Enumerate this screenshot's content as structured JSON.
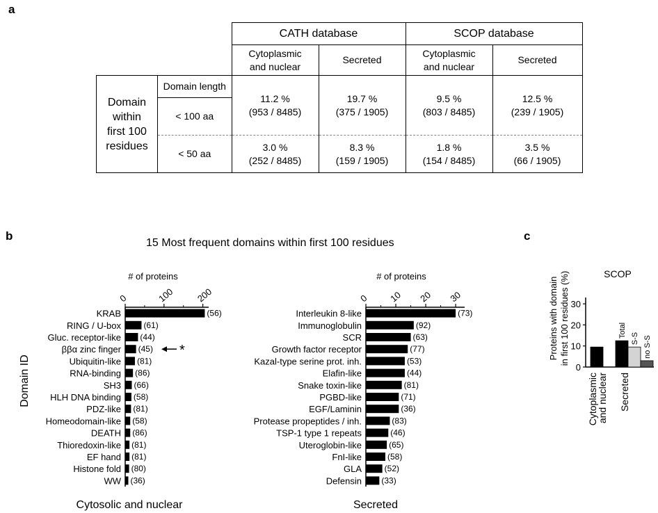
{
  "panel_a": {
    "letter": "a",
    "cath_header": "CATH database",
    "scop_header": "SCOP database",
    "cyto_label_1": "Cytoplasmic",
    "cyto_label_2": "and nuclear",
    "secreted_label": "Secreted",
    "domain_length_label": "Domain length",
    "row_group_label": [
      "Domain",
      "within",
      "first 100",
      "residues"
    ],
    "rows": [
      {
        "length": "< 100 aa",
        "cells": [
          [
            "11.2 %",
            "(953 / 8485)"
          ],
          [
            "19.7 %",
            "(375 / 1905)"
          ],
          [
            "9.5 %",
            "(803 / 8485)"
          ],
          [
            "12.5 %",
            "(239 / 1905)"
          ]
        ]
      },
      {
        "length": "< 50 aa",
        "cells": [
          [
            "3.0 %",
            "(252 / 8485)"
          ],
          [
            "8.3 %",
            "(159 / 1905)"
          ],
          [
            "1.8 %",
            "(154 / 8485)"
          ],
          [
            "3.5 %",
            "(66 / 1905)"
          ]
        ]
      }
    ]
  },
  "panel_b": {
    "letter": "b",
    "title": "15 Most frequent domains within first 100 residues",
    "ylabel": "Domain ID",
    "annotation_star": "*"
  },
  "panel_c": {
    "letter": "c"
  },
  "chart_data": [
    {
      "type": "bar",
      "orientation": "horizontal",
      "title": "",
      "xlabel": "# of proteins",
      "ylabel": "Domain ID",
      "caption": "Cytosolic and nuclear",
      "xlim": [
        0,
        215
      ],
      "xticks": [
        0,
        100,
        200
      ],
      "xticks_minor": [
        50,
        150
      ],
      "categories": [
        "KRAB",
        "RING / U-box",
        "Gluc. receptor-like",
        "ββα zinc finger",
        "Ubiquitin-like",
        "RNA-binding",
        "SH3",
        "HLH DNA binding",
        "PDZ-like",
        "Homeodomain-like",
        "DEATH",
        "Thioredoxin-like",
        "EF hand",
        "Histone fold",
        "WW"
      ],
      "values": [
        205,
        42,
        33,
        28,
        25,
        20,
        17,
        16,
        15,
        13,
        13,
        11,
        11,
        10,
        8
      ],
      "data_labels": [
        "(56)",
        "(61)",
        "(44)",
        "(45)",
        "(81)",
        "(86)",
        "(66)",
        "(58)",
        "(81)",
        "(58)",
        "(86)",
        "(81)",
        "(81)",
        "(80)",
        "(36)"
      ],
      "highlight_category": "ββα zinc finger"
    },
    {
      "type": "bar",
      "orientation": "horizontal",
      "title": "",
      "xlabel": "# of proteins",
      "caption": "Secreted",
      "xlim": [
        0,
        33
      ],
      "xticks": [
        0,
        10,
        20,
        30
      ],
      "xticks_minor": [
        5,
        15,
        25
      ],
      "categories": [
        "Interleukin 8-like",
        "Immunoglobulin",
        "SCR",
        "Growth factor receptor",
        "Kazal-type serine prot. inh.",
        "Elafin-like",
        "Snake toxin-like",
        "PGBD-like",
        "EGF/Laminin",
        "Protease propeptides / inh.",
        "TSP-1 type 1 repeats",
        "Uteroglobin-like",
        "FnI-like",
        "GLA",
        "Defensin"
      ],
      "values": [
        30,
        16,
        15,
        14,
        13,
        13,
        12,
        11,
        11,
        8,
        7.5,
        7,
        6.5,
        5.5,
        4.5
      ],
      "data_labels": [
        "(73)",
        "(92)",
        "(63)",
        "(77)",
        "(53)",
        "(44)",
        "(81)",
        "(71)",
        "(36)",
        "(83)",
        "(46)",
        "(65)",
        "(58)",
        "(52)",
        "(33)"
      ]
    },
    {
      "type": "bar",
      "title": "SCOP",
      "ylabel_lines": [
        "Proteins with domain",
        "in first 100 residues (%)"
      ],
      "ylim": [
        0,
        33
      ],
      "yticks": [
        0,
        10,
        20,
        30
      ],
      "groups": [
        {
          "label_lines": [
            "Cytoplasmic",
            "and nuclear"
          ],
          "bars": [
            {
              "value": 9.5,
              "color": "#000000",
              "label": ""
            }
          ]
        },
        {
          "label_lines": [
            "Secreted"
          ],
          "bars": [
            {
              "value": 12.5,
              "color": "#000000",
              "label": "Total"
            },
            {
              "value": 9.5,
              "color": "#d4d4d4",
              "label": "S-S"
            },
            {
              "value": 3.0,
              "color": "#555555",
              "label": "no S-S"
            }
          ]
        }
      ]
    }
  ]
}
